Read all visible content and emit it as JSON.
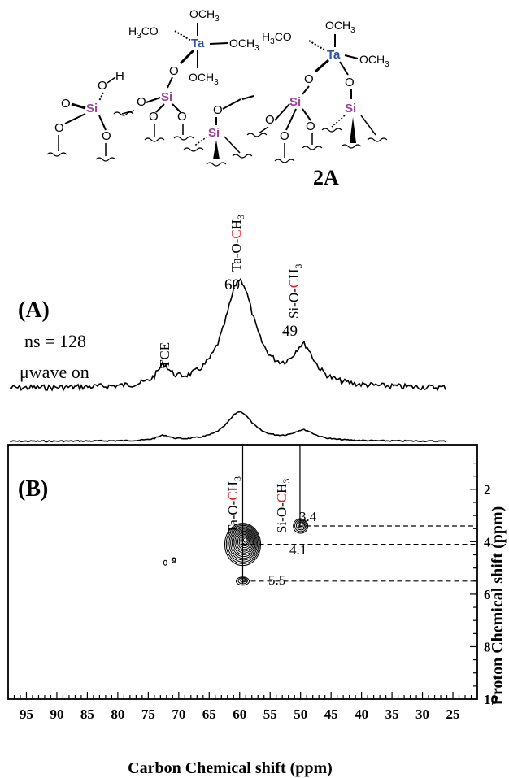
{
  "structure": {
    "label": "2A",
    "accent_ta": "#2f4fa0",
    "accent_si": "#9c3f9c",
    "atoms": {
      "ta": "Ta",
      "si": "Si",
      "o": "O",
      "h": "H",
      "och3": "OCH3",
      "h3co": "H3CO"
    }
  },
  "highlight_color": "#e02020",
  "spectrum_A": {
    "panel_label": "(A)",
    "ns_label": "ns = 128",
    "uwave_label": "μwave on",
    "peaks": [
      {
        "label_prefix": "Ta-O-",
        "label_c": "C",
        "label_h": "H",
        "label_sub": "3",
        "shift": "60",
        "ppm": 60
      },
      {
        "label_prefix": "Si-O-",
        "label_c": "C",
        "label_h": "H",
        "label_sub": "3",
        "shift": "49",
        "ppm": 49
      },
      {
        "label": "TCE",
        "ppm": 72.5
      }
    ]
  },
  "panel_B": {
    "panel_label": "(B)",
    "annotations": [
      "3.4",
      "4.1",
      "5.5"
    ],
    "peak_labels": [
      {
        "prefix": "Ta-O-",
        "c": "C",
        "h": "H",
        "sub": "3"
      },
      {
        "prefix": "Si-O-",
        "c": "C",
        "h": "H",
        "sub": "3"
      }
    ]
  },
  "chart_data": {
    "type": "heatmap",
    "title": "",
    "xlabel": "Carbon Chemical shift (ppm)",
    "ylabel": "Proton Chemical shift (ppm)",
    "xlim": [
      98,
      21
    ],
    "ylim": [
      10,
      0.3
    ],
    "x_ticks": [
      95,
      90,
      85,
      80,
      75,
      70,
      65,
      60,
      55,
      50,
      45,
      40,
      35,
      30,
      25
    ],
    "y_ticks": [
      2,
      4,
      6,
      8,
      10
    ],
    "correlations": [
      {
        "carbon_ppm": 59.5,
        "proton_ppm": 4.1,
        "assignment": "Ta-O-CH3"
      },
      {
        "carbon_ppm": 59.5,
        "proton_ppm": 5.5,
        "assignment": "Ta-O-CH3"
      },
      {
        "carbon_ppm": 50,
        "proton_ppm": 3.4,
        "assignment": "Si-O-CH3"
      },
      {
        "carbon_ppm": 72,
        "proton_ppm": 4.8,
        "assignment": ""
      }
    ],
    "projection_1d": {
      "peaks": [
        {
          "ppm": 60,
          "relative_height": 1.0
        },
        {
          "ppm": 49.5,
          "relative_height": 0.34
        },
        {
          "ppm": 72.5,
          "relative_height": 0.17
        }
      ]
    }
  }
}
